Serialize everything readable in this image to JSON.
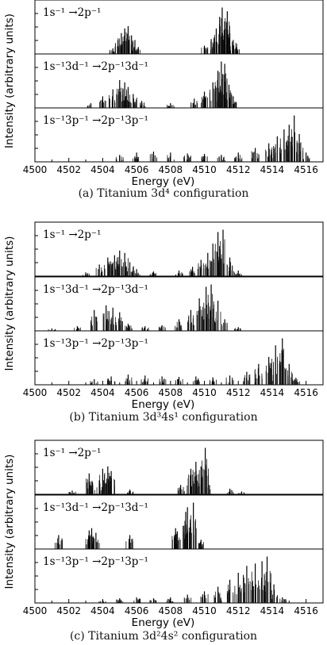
{
  "chart_data": [
    {
      "type": "bar",
      "caption": "(a) Titanium 3d⁴ configuration",
      "xlabel": "Energy (eV)",
      "ylabel": "Intensity (arbitrary units)",
      "xlim": [
        4500,
        4517
      ],
      "xticks": [
        "4500",
        "4502",
        "4504",
        "4506",
        "4508",
        "4510",
        "4512",
        "4514",
        "4516"
      ],
      "panels": [
        {
          "label": "1s⁻¹ →2p⁻¹",
          "x": [
            4504.6,
            4504.9,
            4505.1,
            4505.3,
            4505.5,
            4505.7,
            4505.9,
            4506.1,
            4510.0,
            4510.4,
            4510.7,
            4510.9,
            4511.05,
            4511.2,
            4511.35,
            4511.5,
            4511.7,
            4511.9
          ],
          "y": [
            0.12,
            0.3,
            0.45,
            0.55,
            0.6,
            0.4,
            0.3,
            0.15,
            0.18,
            0.32,
            0.55,
            0.8,
            1.0,
            0.7,
            0.92,
            0.45,
            0.3,
            0.15
          ]
        },
        {
          "label": "1s⁻¹3d⁻¹ →2p⁻¹3d⁻¹",
          "x": [
            4503.3,
            4504.0,
            4504.6,
            4505.0,
            4505.3,
            4505.5,
            4505.8,
            4506.3,
            4508.0,
            4509.4,
            4510.0,
            4510.5,
            4510.8,
            4511.0,
            4511.2,
            4511.45,
            4511.7
          ],
          "y": [
            0.1,
            0.25,
            0.4,
            0.6,
            0.55,
            0.45,
            0.3,
            0.15,
            0.1,
            0.2,
            0.35,
            0.55,
            0.8,
            1.0,
            0.95,
            0.5,
            0.25
          ]
        },
        {
          "label": "1s⁻¹3p⁻¹ →2p⁻¹3p⁻¹",
          "x": [
            4505.0,
            4506.0,
            4507.0,
            4508.0,
            4509.0,
            4510.0,
            4511.0,
            4512.0,
            4513.0,
            4513.8,
            4514.3,
            4514.7,
            4515.0,
            4515.3,
            4515.6,
            4516.0
          ],
          "y": [
            0.15,
            0.2,
            0.22,
            0.2,
            0.18,
            0.17,
            0.15,
            0.2,
            0.3,
            0.4,
            0.55,
            0.7,
            0.8,
            1.0,
            0.6,
            0.2
          ]
        }
      ]
    },
    {
      "type": "bar",
      "caption": "(b) Titanium 3d³4s¹ configuration",
      "xlabel": "Energy (eV)",
      "ylabel": "Intensity (arbitrary units)",
      "xlim": [
        4500,
        4517
      ],
      "xticks": [
        "4500",
        "4502",
        "4504",
        "4506",
        "4508",
        "4510",
        "4512",
        "4514",
        "4516"
      ],
      "panels": [
        {
          "label": "1s⁻¹ →2p⁻¹",
          "x": [
            4503.0,
            4503.8,
            4504.3,
            4504.7,
            4505.0,
            4505.3,
            4505.6,
            4506.0,
            4507.0,
            4508.5,
            4509.3,
            4509.8,
            4510.2,
            4510.5,
            4510.8,
            4511.1,
            4511.5,
            4512.0
          ],
          "y": [
            0.08,
            0.25,
            0.4,
            0.45,
            0.55,
            0.5,
            0.3,
            0.15,
            0.1,
            0.12,
            0.2,
            0.35,
            0.5,
            0.7,
            0.95,
            1.0,
            0.4,
            0.12
          ]
        },
        {
          "label": "1s⁻¹3d⁻¹ →2p⁻¹3d⁻¹",
          "x": [
            4501.0,
            4502.5,
            4503.5,
            4504.2,
            4504.6,
            4505.0,
            4505.5,
            4506.5,
            4507.5,
            4508.5,
            4509.2,
            4509.7,
            4510.1,
            4510.4,
            4510.8,
            4511.2,
            4512.0
          ],
          "y": [
            0.05,
            0.1,
            0.45,
            0.55,
            0.5,
            0.4,
            0.15,
            0.1,
            0.12,
            0.25,
            0.45,
            0.7,
            0.95,
            1.0,
            0.65,
            0.25,
            0.08
          ]
        },
        {
          "label": "1s⁻¹3p⁻¹ →2p⁻¹3p⁻¹",
          "x": [
            4503.5,
            4504.5,
            4505.5,
            4506.5,
            4507.5,
            4508.5,
            4509.5,
            4510.5,
            4511.5,
            4512.5,
            4513.2,
            4513.8,
            4514.2,
            4514.6,
            4515.0,
            4515.4
          ],
          "y": [
            0.12,
            0.18,
            0.22,
            0.2,
            0.18,
            0.17,
            0.18,
            0.16,
            0.2,
            0.28,
            0.45,
            0.6,
            0.85,
            1.0,
            0.45,
            0.15
          ]
        }
      ]
    },
    {
      "type": "bar",
      "caption": "(c) Titanium 3d²4s² configuration",
      "xlabel": "Energy (eV)",
      "ylabel": "Intensity (arbitrary units)",
      "xlim": [
        4500,
        4517
      ],
      "xticks": [
        "4500",
        "4502",
        "4504",
        "4506",
        "4508",
        "4510",
        "4512",
        "4514",
        "4516"
      ],
      "panels": [
        {
          "label": "1s⁻¹ →2p⁻¹",
          "x": [
            4502.2,
            4503.2,
            4503.4,
            4503.8,
            4504.0,
            4504.3,
            4504.5,
            4505.6,
            4508.6,
            4509.2,
            4509.5,
            4509.8,
            4510.05,
            4510.3,
            4511.5,
            4512.2
          ],
          "y": [
            0.08,
            0.45,
            0.25,
            0.3,
            0.55,
            0.6,
            0.5,
            0.1,
            0.2,
            0.55,
            0.7,
            0.6,
            1.0,
            0.2,
            0.12,
            0.06
          ]
        },
        {
          "label": "1s⁻¹3d⁻¹ →2p⁻¹3d⁻¹",
          "x": [
            4501.4,
            4503.2,
            4503.35,
            4503.6,
            4505.6,
            4508.3,
            4508.4,
            4508.9,
            4509.0,
            4509.35,
            4509.8
          ],
          "y": [
            0.3,
            0.4,
            0.45,
            0.35,
            0.3,
            0.45,
            0.38,
            0.8,
            0.9,
            1.0,
            0.2
          ]
        },
        {
          "label": "1s⁻¹3p⁻¹ →2p⁻¹3p⁻¹",
          "x": [
            4504.0,
            4505.0,
            4506.0,
            4507.0,
            4508.0,
            4509.0,
            4510.0,
            4510.8,
            4511.5,
            4512.0,
            4512.5,
            4513.0,
            4513.4,
            4513.7,
            4514.1,
            4514.6
          ],
          "y": [
            0.06,
            0.1,
            0.12,
            0.1,
            0.12,
            0.18,
            0.25,
            0.35,
            0.5,
            0.65,
            0.8,
            0.85,
            0.9,
            1.0,
            0.4,
            0.12
          ]
        }
      ]
    }
  ]
}
